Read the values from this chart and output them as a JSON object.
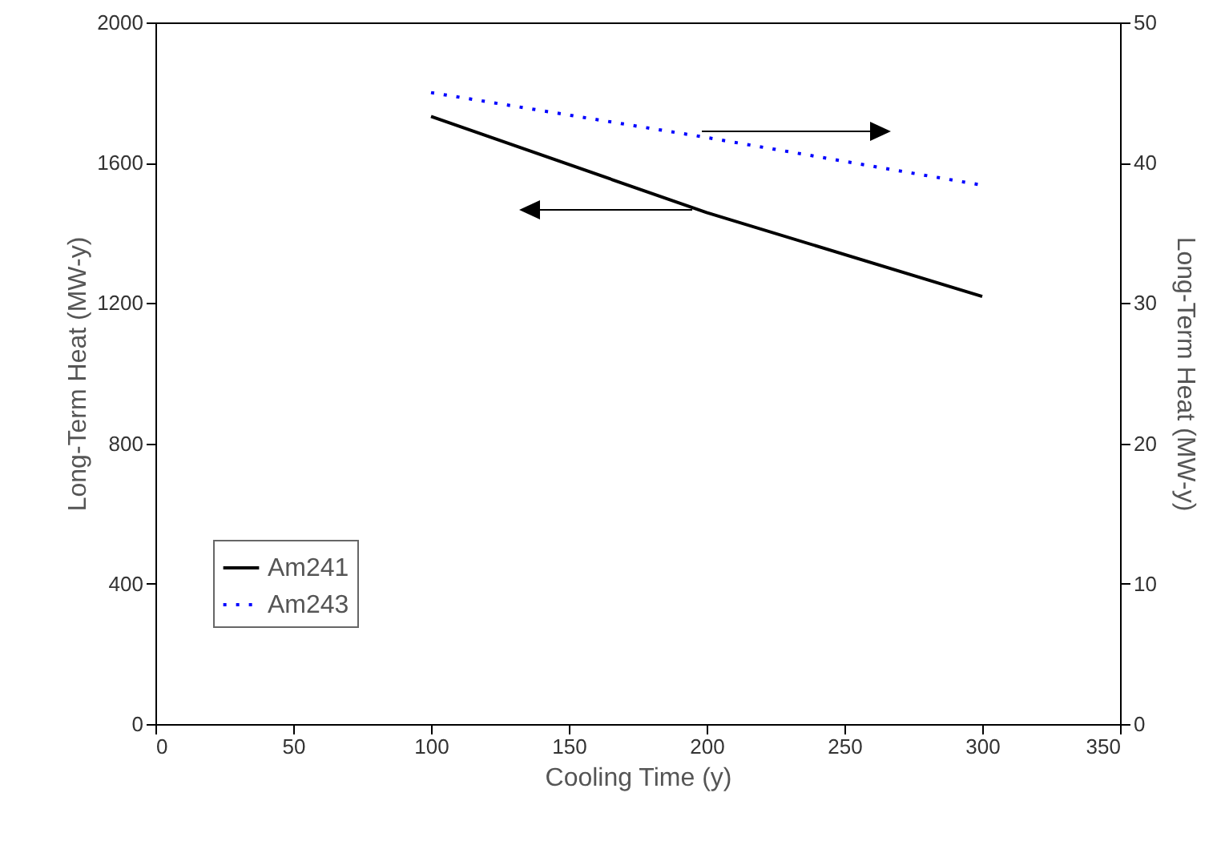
{
  "chart_data": {
    "type": "line",
    "xlabel": "Cooling Time (y)",
    "ylabel": "Long-Term Heat (MW-y)",
    "y2label": "Long-Term Heat (MW-y)",
    "x": [
      100,
      200,
      300
    ],
    "series": [
      {
        "name": "Am241",
        "color": "#000000",
        "line_style": "solid",
        "values": [
          1732,
          1458,
          1219
        ]
      },
      {
        "name": "Am243",
        "color": "#0000ff",
        "line_style": "dotted",
        "axis": "y2",
        "values": [
          45.0,
          41.8,
          38.4
        ]
      }
    ],
    "xlim": [
      0,
      350
    ],
    "xticks": [
      0,
      50,
      100,
      150,
      200,
      250,
      300,
      350
    ],
    "ylim": [
      0,
      2000
    ],
    "yticks": [
      0,
      400,
      800,
      1200,
      1600,
      2000
    ],
    "y2lim": [
      0,
      50
    ],
    "y2ticks": [
      0,
      10,
      20,
      30,
      40,
      50
    ],
    "legend": "bottom left",
    "grid": false,
    "marker": "none"
  }
}
